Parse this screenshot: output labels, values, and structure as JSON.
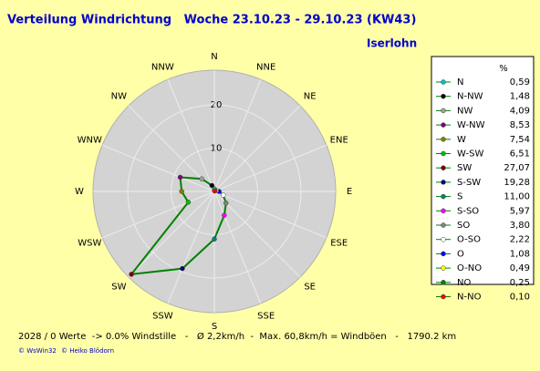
{
  "chart_data": {
    "type": "radar",
    "title": "Verteilung Windrichtung   Woche 23.10.23 - 29.10.23 (KW43)",
    "subtitle": "Iserlohn",
    "categories": [
      "N",
      "NNW",
      "NW",
      "WNW",
      "W",
      "WSW",
      "SW",
      "SSW",
      "S",
      "SSE",
      "SE",
      "ESE",
      "E",
      "ENE",
      "NE",
      "NNE"
    ],
    "legend_labels": [
      "N",
      "N-NW",
      "NW",
      "W-NW",
      "W",
      "W-SW",
      "SW",
      "S-SW",
      "S",
      "S-SO",
      "SO",
      "O-SO",
      "O",
      "O-NO",
      "NO",
      "N-NO"
    ],
    "legend_title": "%",
    "marker_colors": [
      "#00c0c0",
      "#000000",
      "#a0a0a0",
      "#800080",
      "#808000",
      "#00c000",
      "#800000",
      "#000080",
      "#008080",
      "#ff00ff",
      "#808080",
      "#ffffff",
      "#0000ff",
      "#ffff00",
      "#008000",
      "#ff0000"
    ],
    "series": [
      {
        "color": "#008000",
        "values": [
          0.59,
          1.48,
          4.09,
          8.53,
          7.54,
          6.51,
          27.07,
          19.28,
          11.0,
          5.97,
          3.8,
          2.22,
          1.08,
          0.49,
          0.25,
          0.1
        ],
        "value_labels": [
          "0,59",
          "1,48",
          "4,09",
          "8,53",
          "7,54",
          "6,51",
          "27,07",
          "19,28",
          "11,00",
          "5,97",
          "3,80",
          "2,22",
          "1,08",
          "0,49",
          "0,25",
          "0,10"
        ]
      }
    ],
    "rlim": [
      0,
      28
    ],
    "rticks": [
      10,
      20
    ],
    "footer": "2028 / 0 Werte  -> 0.0% Windstille   -   Ø 2,2km/h  -  Max. 60,8km/h = Windböen   -   1790.2 km",
    "credits": [
      "© WsWin32",
      "© Heiko Blödorn"
    ]
  }
}
